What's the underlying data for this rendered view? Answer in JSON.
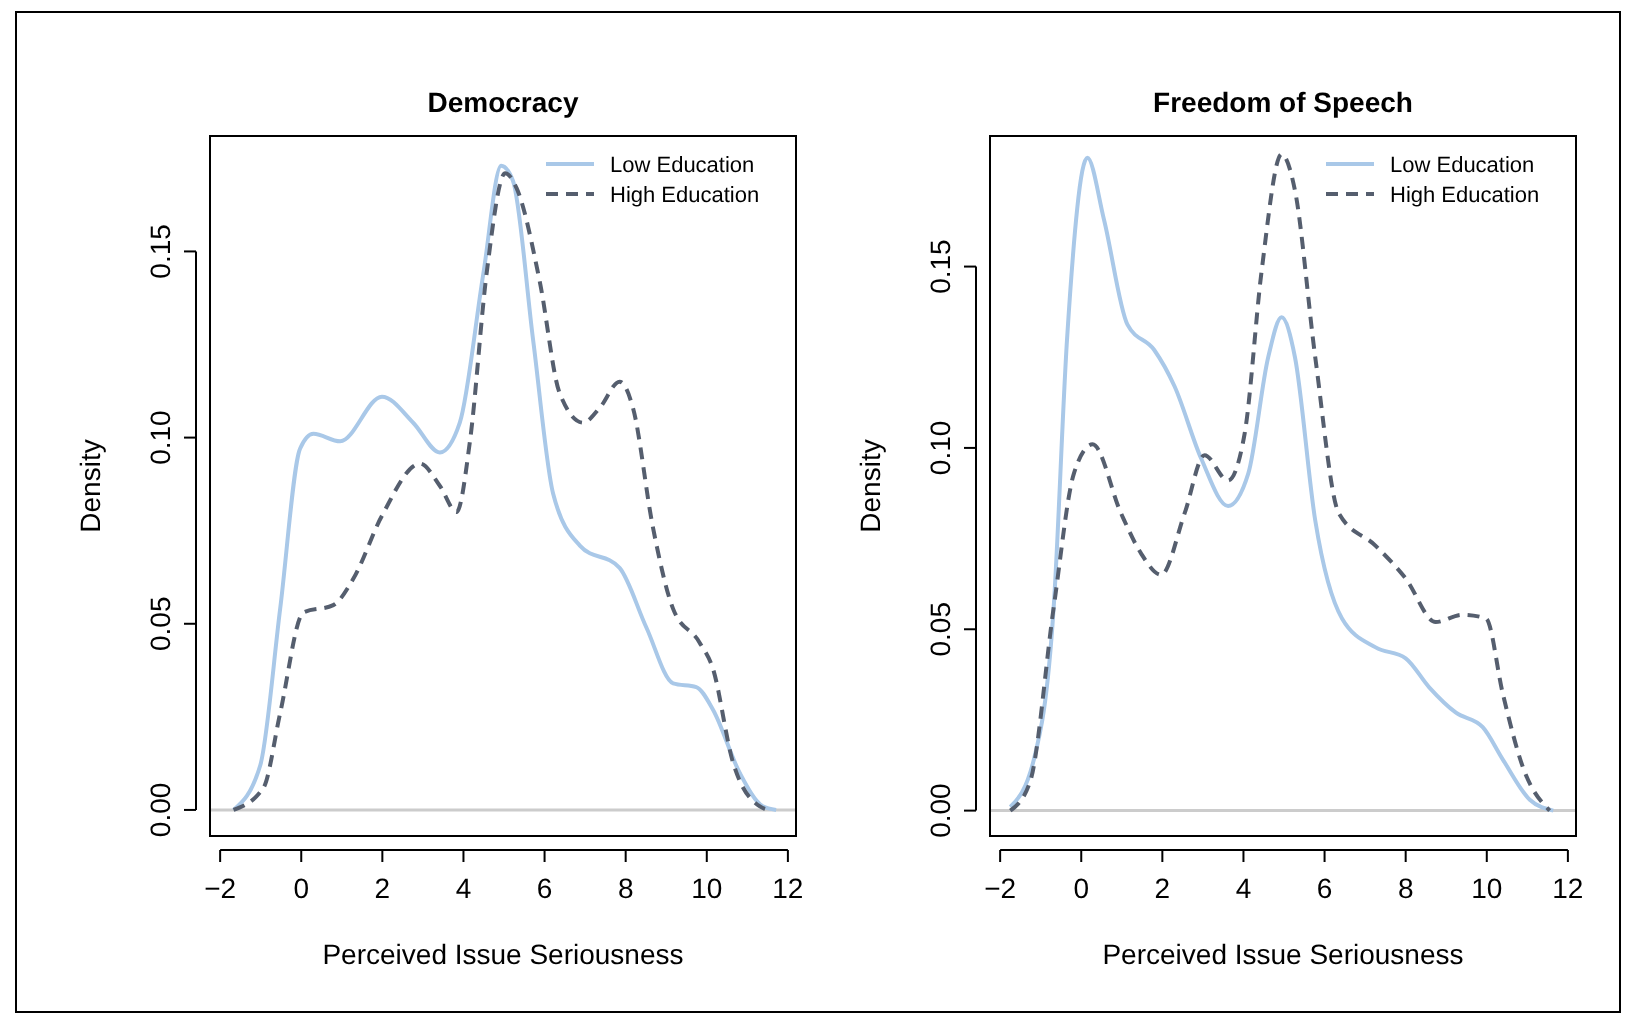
{
  "chart_data": [
    {
      "type": "line",
      "title": "Democracy",
      "xlabel": "Perceived Issue Seriousness",
      "ylabel": "Density",
      "xlim": [
        -2.25,
        12.2
      ],
      "ylim": [
        -0.007,
        0.181
      ],
      "xticks": [
        {
          "value": -2,
          "label": "−2"
        },
        0,
        2,
        4,
        6,
        8,
        10,
        12
      ],
      "yticks": [
        {
          "value": 0,
          "label": "0.00"
        },
        {
          "value": 0.05,
          "label": "0.05"
        },
        {
          "value": 0.1,
          "label": "0.10"
        },
        {
          "value": 0.15,
          "label": "0.15"
        }
      ],
      "grid": false,
      "legend": "top right",
      "ref_lines": [
        {
          "axis": "y",
          "value": 0,
          "color": "#cccccc"
        }
      ],
      "series": [
        {
          "name": "Low Education",
          "color": "#a9c8e8",
          "line_style": "solid",
          "x": [
            -1.67,
            -1.01,
            -0.52,
            -0.03,
            0.3,
            0.96,
            1.99,
            2.76,
            3.42,
            3.91,
            4.49,
            4.93,
            5.22,
            5.72,
            6.21,
            6.87,
            7.85,
            8.51,
            9.17,
            9.74,
            10.15,
            10.81,
            11.38,
            11.71
          ],
          "values": [
            0,
            0.012,
            0.054,
            0.097,
            0.101,
            0.099,
            0.111,
            0.104,
            0.096,
            0.104,
            0.144,
            0.173,
            0.169,
            0.126,
            0.085,
            0.071,
            0.065,
            0.049,
            0.034,
            0.033,
            0.027,
            0.01,
            0.001,
            0
          ]
        },
        {
          "name": "High Education",
          "color": "#555e6e",
          "line_style": "dashed",
          "x": [
            -1.67,
            -0.93,
            -0.52,
            0.05,
            0.79,
            1.28,
            1.99,
            2.93,
            3.42,
            3.83,
            4.16,
            4.57,
            5.03,
            5.31,
            5.88,
            6.37,
            6.95,
            7.36,
            7.85,
            8.18,
            8.67,
            9.17,
            9.82,
            10.15,
            10.64,
            11.3,
            11.55
          ],
          "values": [
            0,
            0.006,
            0.026,
            0.053,
            0.055,
            0.062,
            0.079,
            0.093,
            0.087,
            0.08,
            0.099,
            0.144,
            0.171,
            0.167,
            0.142,
            0.112,
            0.104,
            0.108,
            0.115,
            0.108,
            0.076,
            0.054,
            0.045,
            0.038,
            0.013,
            0.001,
            0
          ]
        }
      ]
    },
    {
      "type": "line",
      "title": "Freedom of Speech",
      "xlabel": "Perceived Issue Seriousness",
      "ylabel": "Density",
      "xlim": [
        -2.25,
        12.2
      ],
      "ylim": [
        -0.007,
        0.186
      ],
      "xticks": [
        {
          "value": -2,
          "label": "−2"
        },
        0,
        2,
        4,
        6,
        8,
        10,
        12
      ],
      "yticks": [
        {
          "value": 0,
          "label": "0.00"
        },
        {
          "value": 0.05,
          "label": "0.05"
        },
        {
          "value": 0.1,
          "label": "0.10"
        },
        {
          "value": 0.15,
          "label": "0.15"
        }
      ],
      "grid": false,
      "legend": "top right",
      "ref_lines": [
        {
          "axis": "y",
          "value": 0,
          "color": "#cccccc"
        }
      ],
      "series": [
        {
          "name": "Low Education",
          "color": "#a9c8e8",
          "line_style": "solid",
          "x": [
            -1.75,
            -1.17,
            -0.68,
            -0.35,
            0.15,
            0.56,
            1.14,
            1.8,
            2.3,
            2.96,
            3.62,
            4.12,
            4.61,
            4.94,
            5.27,
            5.77,
            6.43,
            7.26,
            8.0,
            8.58,
            9.24,
            9.9,
            10.4,
            11.06,
            11.64
          ],
          "values": [
            0.001,
            0.014,
            0.056,
            0.13,
            0.18,
            0.163,
            0.134,
            0.127,
            0.117,
            0.097,
            0.084,
            0.093,
            0.125,
            0.136,
            0.125,
            0.08,
            0.053,
            0.045,
            0.042,
            0.034,
            0.027,
            0.023,
            0.014,
            0.003,
            0
          ]
        },
        {
          "name": "High Education",
          "color": "#555e6e",
          "line_style": "dashed",
          "x": [
            -1.75,
            -1.26,
            -0.68,
            -0.18,
            0.28,
            0.98,
            1.47,
            1.97,
            2.55,
            3.04,
            3.62,
            4.03,
            4.45,
            4.94,
            5.27,
            5.77,
            6.35,
            7.26,
            8.0,
            8.74,
            9.4,
            9.98,
            10.4,
            10.89,
            11.55
          ],
          "values": [
            0,
            0.008,
            0.056,
            0.093,
            0.101,
            0.082,
            0.071,
            0.065,
            0.082,
            0.098,
            0.091,
            0.104,
            0.149,
            0.181,
            0.171,
            0.125,
            0.082,
            0.073,
            0.064,
            0.052,
            0.054,
            0.053,
            0.032,
            0.012,
            0
          ]
        }
      ]
    }
  ]
}
